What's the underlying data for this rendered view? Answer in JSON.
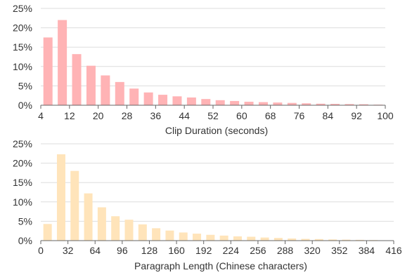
{
  "chart_data": [
    {
      "type": "bar",
      "title": "",
      "xlabel": "Clip Duration (seconds)",
      "ylabel": "",
      "color": "#FFB3B5",
      "x": [
        4,
        8,
        12,
        16,
        20,
        24,
        28,
        32,
        36,
        40,
        44,
        48,
        52,
        56,
        60,
        64,
        68,
        72,
        76,
        80,
        84,
        88,
        92,
        96
      ],
      "values": [
        17.5,
        22.0,
        13.2,
        10.2,
        7.7,
        6.0,
        4.3,
        3.3,
        2.7,
        2.3,
        2.0,
        1.6,
        1.3,
        1.1,
        0.9,
        0.8,
        0.7,
        0.6,
        0.5,
        0.4,
        0.35,
        0.3,
        0.25,
        0.15
      ],
      "xticks": [
        4,
        12,
        20,
        28,
        36,
        44,
        52,
        60,
        68,
        76,
        84,
        92,
        100
      ],
      "xlim": [
        4,
        100
      ],
      "yticks": [
        "0%",
        "5%",
        "10%",
        "15%",
        "20%",
        "25%"
      ],
      "ylim": [
        0,
        25
      ],
      "grid": true
    },
    {
      "type": "bar",
      "title": "",
      "xlabel": "Paragraph Length (Chinese characters)",
      "ylabel": "",
      "color": "#FFE4BA",
      "x": [
        0,
        16,
        32,
        48,
        64,
        80,
        96,
        112,
        128,
        144,
        160,
        176,
        192,
        208,
        224,
        240,
        256,
        272,
        288,
        304,
        320,
        336,
        352,
        368,
        384
      ],
      "values": [
        4.3,
        22.3,
        18.0,
        12.2,
        8.6,
        6.3,
        5.4,
        4.2,
        3.2,
        2.6,
        2.1,
        1.8,
        1.5,
        1.3,
        1.1,
        1.0,
        0.8,
        0.7,
        0.55,
        0.45,
        0.4,
        0.3,
        0.25,
        0.2,
        0.15
      ],
      "xticks": [
        0,
        32,
        64,
        96,
        128,
        160,
        192,
        224,
        256,
        288,
        320,
        352,
        384,
        416
      ],
      "xlim": [
        0,
        416
      ],
      "yticks": [
        "0%",
        "5%",
        "10%",
        "15%",
        "20%",
        "25%"
      ],
      "ylim": [
        0,
        25
      ],
      "grid": true
    }
  ]
}
